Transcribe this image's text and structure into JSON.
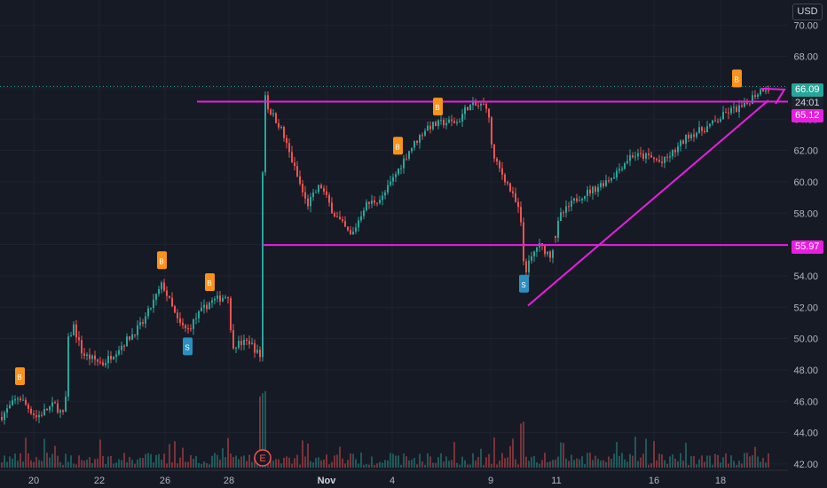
{
  "currency_label": "USD",
  "price_tags": {
    "last_price": "66.09",
    "countdown": "24:01",
    "resistance": "65.12",
    "support": "55.97"
  },
  "earnings_marker": "E",
  "colors": {
    "background": "#161a25",
    "up": "#26a69a",
    "down": "#ef5350",
    "drawing": "#e91ee0",
    "grid": "#1f2330",
    "signal_orange": "#f7931a",
    "signal_teal": "#2196f3"
  },
  "chart_data": {
    "type": "candlestick",
    "y_axis": {
      "ylim": [
        41.6,
        71.6
      ],
      "ticks": [
        "70.00",
        "68.00",
        "66.00",
        "64.00",
        "62.00",
        "60.00",
        "58.00",
        "56.00",
        "54.00",
        "52.00",
        "50.00",
        "48.00",
        "46.00",
        "44.00",
        "42.00"
      ]
    },
    "x_axis": {
      "ticks": [
        {
          "label": "20",
          "bold": false
        },
        {
          "label": "22",
          "bold": false
        },
        {
          "label": "26",
          "bold": false
        },
        {
          "label": "28",
          "bold": false
        },
        {
          "label": "Nov",
          "bold": true
        },
        {
          "label": "4",
          "bold": false
        },
        {
          "label": "9",
          "bold": false
        },
        {
          "label": "11",
          "bold": false
        },
        {
          "label": "16",
          "bold": false
        },
        {
          "label": "18",
          "bold": false
        }
      ]
    },
    "price_path": [
      [
        0,
        45.0
      ],
      [
        20,
        46.3
      ],
      [
        40,
        45.0
      ],
      [
        60,
        45.8
      ],
      [
        72,
        45.0
      ],
      [
        76,
        49.9
      ],
      [
        82,
        50.8
      ],
      [
        92,
        49.0
      ],
      [
        115,
        48.4
      ],
      [
        140,
        49.8
      ],
      [
        160,
        51.0
      ],
      [
        182,
        53.5
      ],
      [
        200,
        51.0
      ],
      [
        210,
        50.5
      ],
      [
        222,
        51.5
      ],
      [
        235,
        52.3
      ],
      [
        256,
        52.8
      ],
      [
        260,
        49.6
      ],
      [
        280,
        49.8
      ],
      [
        293,
        48.8
      ],
      [
        296,
        66.5
      ],
      [
        300,
        64.8
      ],
      [
        315,
        63.5
      ],
      [
        330,
        61.0
      ],
      [
        345,
        58.5
      ],
      [
        360,
        59.8
      ],
      [
        375,
        58.0
      ],
      [
        395,
        56.5
      ],
      [
        410,
        58.5
      ],
      [
        430,
        59.0
      ],
      [
        445,
        60.5
      ],
      [
        460,
        62.0
      ],
      [
        480,
        63.5
      ],
      [
        500,
        63.8
      ],
      [
        515,
        63.8
      ],
      [
        525,
        64.8
      ],
      [
        548,
        64.9
      ],
      [
        555,
        61.5
      ],
      [
        570,
        60.0
      ],
      [
        585,
        58.0
      ],
      [
        590,
        54.2
      ],
      [
        597,
        55.0
      ],
      [
        605,
        56.0
      ],
      [
        620,
        55.3
      ],
      [
        630,
        57.8
      ],
      [
        650,
        59.0
      ],
      [
        670,
        59.6
      ],
      [
        690,
        60.4
      ],
      [
        710,
        61.7
      ],
      [
        730,
        61.6
      ],
      [
        745,
        61.2
      ],
      [
        760,
        62.0
      ],
      [
        775,
        63.0
      ],
      [
        790,
        63.3
      ],
      [
        805,
        63.8
      ],
      [
        820,
        64.5
      ],
      [
        838,
        64.8
      ],
      [
        848,
        65.5
      ],
      [
        860,
        66.0
      ]
    ],
    "horizontal_levels": [
      {
        "price": 65.12,
        "start": 222
      },
      {
        "price": 55.97,
        "start": 296
      }
    ],
    "trend_line": {
      "from": [
        595,
        52.1
      ],
      "to": [
        866,
        65.2
      ]
    },
    "signal_badges": [
      {
        "type": "B",
        "color": "orange",
        "index": 22,
        "price": 47.6
      },
      {
        "type": "B",
        "color": "orange",
        "index": 182,
        "price": 55.0
      },
      {
        "type": "B",
        "color": "orange",
        "index": 236,
        "price": 53.6
      },
      {
        "type": "S",
        "color": "teal",
        "index": 211,
        "price": 49.5
      },
      {
        "type": "B",
        "color": "orange",
        "index": 448,
        "price": 62.3
      },
      {
        "type": "B",
        "color": "orange",
        "index": 493,
        "price": 64.8
      },
      {
        "type": "S",
        "color": "teal",
        "index": 590,
        "price": 53.5
      },
      {
        "type": "B",
        "color": "orange",
        "index": 830,
        "price": 66.6
      }
    ]
  }
}
